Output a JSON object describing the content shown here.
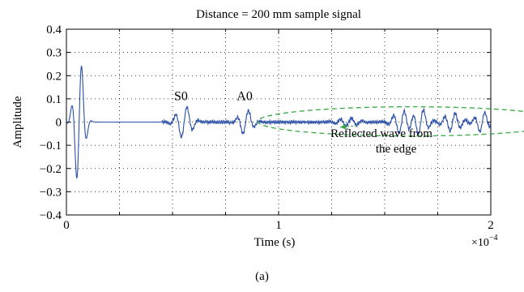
{
  "figure": {
    "caption": "(a)"
  },
  "chart_data": {
    "type": "line",
    "title": "Distance = 200 mm sample signal",
    "xlabel": "Time (s)",
    "ylabel": "Amplitude",
    "x_multiplier_label": "×10",
    "x_multiplier_exponent": "−4",
    "xlim": [
      0,
      0.0002
    ],
    "ylim": [
      -0.4,
      0.4
    ],
    "xticks": [
      0,
      0.0001,
      0.0002
    ],
    "xtick_labels": [
      "0",
      "1",
      "2"
    ],
    "yticks": [
      -0.4,
      -0.3,
      -0.2,
      -0.1,
      0,
      0.1,
      0.2,
      0.3,
      0.4
    ],
    "ytick_labels": [
      "−0.4",
      "−0.3",
      "−0.2",
      "−0.1",
      "0",
      "0.1",
      "0.2",
      "0.3",
      "0.4"
    ],
    "grid": true,
    "grid_style": "dotted",
    "line_color": "#2b4fa8",
    "annotation_color": "#3aa848",
    "packets": [
      {
        "center": 6e-06,
        "amplitude": 0.28,
        "freq": 200000,
        "width": 3e-06
      },
      {
        "center": 5.55e-05,
        "amplitude": 0.07,
        "freq": 180000,
        "width": 4.5e-06
      },
      {
        "center": 8.45e-05,
        "amplitude": 0.055,
        "freq": 180000,
        "width": 4e-06
      },
      {
        "center": 0.000133,
        "amplitude": 0.018,
        "freq": 190000,
        "width": 6e-06
      },
      {
        "center": 0.000158,
        "amplitude": 0.05,
        "freq": 190000,
        "width": 5e-06
      },
      {
        "center": 0.000167,
        "amplitude": 0.058,
        "freq": 190000,
        "width": 4e-06
      },
      {
        "center": 0.000182,
        "amplitude": 0.04,
        "freq": 200000,
        "width": 5e-06
      },
      {
        "center": 0.000196,
        "amplitude": 0.045,
        "freq": 200000,
        "width": 4e-06
      }
    ],
    "noise_level": 0.008,
    "noise_start": 4.5e-05,
    "annotations": [
      {
        "text": "S0",
        "x": 5.4e-05,
        "y": 0.095
      },
      {
        "text": "A0",
        "x": 8.4e-05,
        "y": 0.095
      }
    ],
    "ellipse": {
      "cx": 0.0001625,
      "cy": 0.003,
      "rx": 7.25e-05,
      "ry": 0.063
    },
    "reflected_label_lines": [
      "Reflected wave from",
      "the edge"
    ],
    "reflected_label_pos": {
      "x": 0.0001485,
      "y": -0.065
    },
    "arrow_tip": {
      "x": 0.000129,
      "y": -0.022
    }
  }
}
